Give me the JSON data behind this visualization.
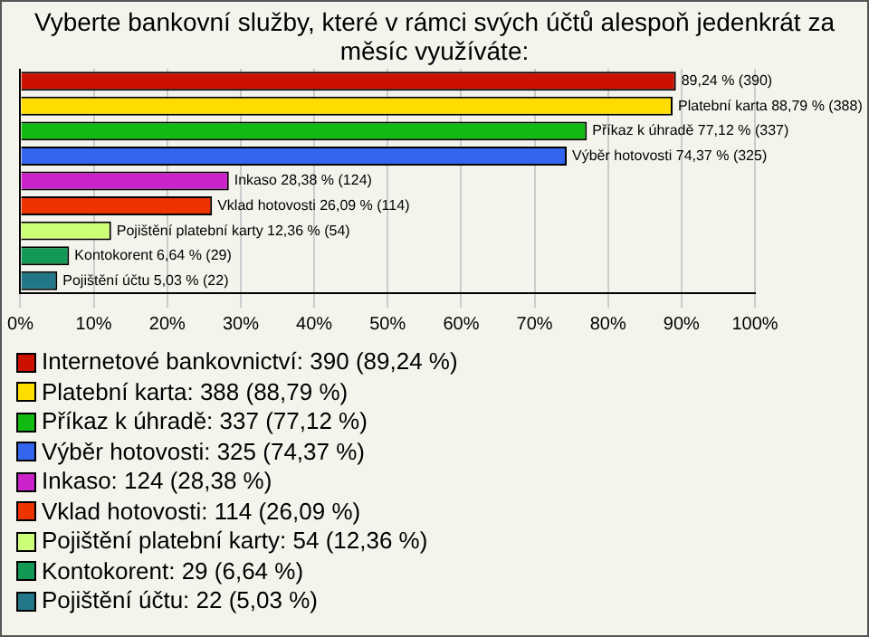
{
  "chart_data": {
    "type": "bar",
    "orientation": "horizontal",
    "title": "Vyberte bankovní služby, které v rámci svých účtů alespoň jedenkrát za měsíc využíváte:",
    "categories": [
      null,
      null,
      null,
      null,
      null,
      null,
      null,
      null,
      null
    ],
    "series": [
      {
        "name": "Internetové bankovnictví: 390 (89,24 %)",
        "color": "#cc1100",
        "values": [
          89.24,
          null,
          null,
          null,
          null,
          null,
          null,
          null,
          null
        ],
        "value_labels": [
          "89,24 % (390)",
          null,
          null,
          null,
          null,
          null,
          null,
          null,
          null
        ]
      },
      {
        "name": "Platební karta: 388 (88,79 %)",
        "color": "#ffdd00",
        "values": [
          null,
          88.79,
          null,
          null,
          null,
          null,
          null,
          null,
          null
        ],
        "value_labels": [
          null,
          "Platební karta 88,79 % (388)",
          null,
          null,
          null,
          null,
          null,
          null,
          null
        ]
      },
      {
        "name": "Příkaz k úhradě: 337 (77,12 %)",
        "color": "#11bb11",
        "values": [
          null,
          null,
          77.12,
          null,
          null,
          null,
          null,
          null,
          null
        ],
        "value_labels": [
          null,
          null,
          "Příkaz k úhradě 77,12 % (337)",
          null,
          null,
          null,
          null,
          null,
          null
        ]
      },
      {
        "name": "Výběr hotovosti: 325 (74,37 %)",
        "color": "#3366ee",
        "values": [
          null,
          null,
          null,
          74.37,
          null,
          null,
          null,
          null,
          null
        ],
        "value_labels": [
          null,
          null,
          null,
          "Výběr hotovosti 74,37 % (325)",
          null,
          null,
          null,
          null,
          null
        ]
      },
      {
        "name": "Inkaso: 124 (28,38 %)",
        "color": "#cc22cc",
        "values": [
          null,
          null,
          null,
          null,
          28.38,
          null,
          null,
          null,
          null
        ],
        "value_labels": [
          null,
          null,
          null,
          null,
          "Inkaso 28,38 % (124)",
          null,
          null,
          null,
          null
        ]
      },
      {
        "name": "Vklad hotovosti: 114 (26,09 %)",
        "color": "#ee3300",
        "values": [
          null,
          null,
          null,
          null,
          null,
          26.09,
          null,
          null,
          null
        ],
        "value_labels": [
          null,
          null,
          null,
          null,
          null,
          "Vklad hotovosti 26,09 % (114)",
          null,
          null,
          null
        ]
      },
      {
        "name": "Pojištění platební karty: 54 (12,36 %)",
        "color": "#ccff77",
        "values": [
          null,
          null,
          null,
          null,
          null,
          null,
          12.36,
          null,
          null
        ],
        "value_labels": [
          null,
          null,
          null,
          null,
          null,
          null,
          "Pojištění platební karty 12,36 % (54)",
          null,
          null
        ]
      },
      {
        "name": "Kontokorent: 29 (6,64 %)",
        "color": "#119955",
        "values": [
          null,
          null,
          null,
          null,
          null,
          null,
          null,
          6.64,
          null
        ],
        "value_labels": [
          null,
          null,
          null,
          null,
          null,
          null,
          null,
          "Kontokorent 6,64 % (29)",
          null
        ]
      },
      {
        "name": "Pojištění účtu: 22 (5,03 %)",
        "color": "#227788",
        "values": [
          null,
          null,
          null,
          null,
          null,
          null,
          null,
          null,
          5.03
        ],
        "value_labels": [
          null,
          null,
          null,
          null,
          null,
          null,
          null,
          null,
          "Pojištění účtu 5,03 % (22)"
        ]
      }
    ],
    "xlim": [
      0,
      100
    ],
    "xticks": [
      {
        "value": 0,
        "label": "0%"
      },
      {
        "value": 10,
        "label": "10%"
      },
      {
        "value": 20,
        "label": "20%"
      },
      {
        "value": 30,
        "label": "30%"
      },
      {
        "value": 40,
        "label": "40%"
      },
      {
        "value": 50,
        "label": "50%"
      },
      {
        "value": 60,
        "label": "60%"
      },
      {
        "value": 70,
        "label": "70%"
      },
      {
        "value": 80,
        "label": "80%"
      },
      {
        "value": 90,
        "label": "90%"
      },
      {
        "value": 100,
        "label": "100%"
      }
    ],
    "tick_labels": "x",
    "grid": "x",
    "legend": "bottom"
  }
}
